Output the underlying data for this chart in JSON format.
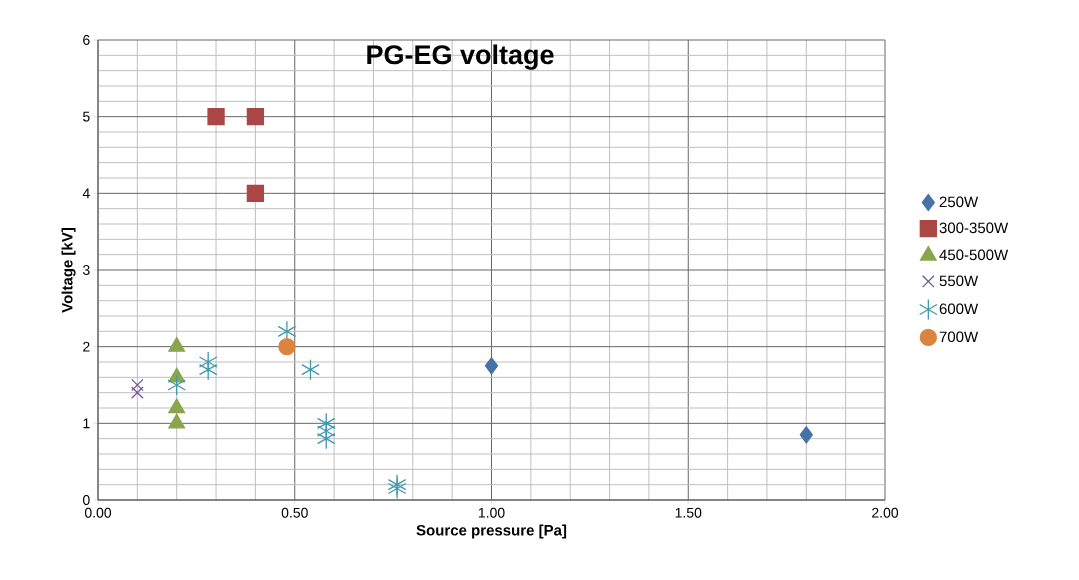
{
  "chart_data": {
    "type": "scatter",
    "title": "PG-EG voltage",
    "xlabel": "Source pressure  [Pa]",
    "ylabel": "Voltage [kV]",
    "series": [
      {
        "name": "250W",
        "color": "#4572a7",
        "marker": "diamond",
        "x": [
          1.0,
          1.8
        ],
        "values": [
          1.75,
          0.85
        ]
      },
      {
        "name": "300-350W",
        "color": "#aa4643",
        "marker": "square",
        "x": [
          0.3,
          0.4,
          0.4
        ],
        "values": [
          5,
          5,
          4
        ]
      },
      {
        "name": "450-500W",
        "color": "#89a54e",
        "marker": "triangle",
        "x": [
          0.2,
          0.2,
          0.2,
          0.2
        ],
        "values": [
          2.0,
          1.6,
          1.2,
          1.0
        ]
      },
      {
        "name": "550W",
        "color": "#71588f",
        "marker": "cross",
        "x": [
          0.1,
          0.1
        ],
        "values": [
          1.4,
          1.5
        ]
      },
      {
        "name": "600W",
        "color": "#4198af",
        "marker": "cross",
        "x": [
          0.2,
          0.28,
          0.28,
          0.48,
          0.54,
          0.58,
          0.58,
          0.58,
          0.76,
          0.76
        ],
        "values": [
          1.5,
          1.7,
          1.8,
          2.2,
          1.7,
          1.0,
          0.9,
          0.8,
          0.2,
          0.15
        ]
      },
      {
        "name": "700W",
        "color": "#db843d",
        "marker": "circle",
        "x": [
          0.48
        ],
        "values": [
          2.0
        ]
      }
    ],
    "xlim": [
      0,
      2
    ],
    "ylim": [
      0,
      6
    ],
    "xticks": [
      {
        "value": 0,
        "label": "0.00"
      },
      {
        "value": 0.5,
        "label": "0.50"
      },
      {
        "value": 1,
        "label": "1.00"
      },
      {
        "value": 1.5,
        "label": "1.50"
      },
      {
        "value": 2,
        "label": "2.00"
      }
    ],
    "yticks": [
      0,
      1,
      2,
      3,
      4,
      5,
      6
    ],
    "grid": true,
    "legend": "right"
  }
}
